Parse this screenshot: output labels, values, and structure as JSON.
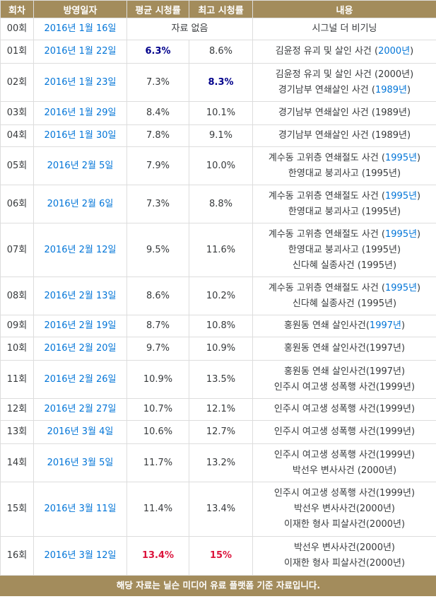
{
  "headers": [
    "회차",
    "방영일자",
    "평균 시청률",
    "최고 시청률",
    "내용"
  ],
  "no_data_label": "자료 없음",
  "footer": "해당 자료는 닐슨 미디어 유료 플랫폼 기준 자료입니다.",
  "episodes": [
    {
      "ep": "00회",
      "date": "2016년 1월 16일",
      "avg": "",
      "max": "",
      "content": [
        {
          "text": "시그널 더 비기닝"
        }
      ]
    },
    {
      "ep": "01회",
      "date": "2016년 1월 22일",
      "avg": "6.3%",
      "max": "8.6%",
      "content": [
        {
          "text": "김윤정 유괴 및 살인 사건 (",
          "link": "2000년",
          "after": ")"
        }
      ]
    },
    {
      "ep": "02회",
      "date": "2016년 1월 23일",
      "avg": "7.3%",
      "max": "8.3%",
      "content": [
        {
          "text": "김윤정 유괴 및 살인 사건 (2000년)"
        },
        {
          "text": "경기남부 연쇄살인 사건 (",
          "link": "1989년",
          "after": ")"
        }
      ]
    },
    {
      "ep": "03회",
      "date": "2016년 1월 29일",
      "avg": "8.4%",
      "max": "10.1%",
      "content": [
        {
          "text": "경기남부 연쇄살인 사건 (1989년)"
        }
      ]
    },
    {
      "ep": "04회",
      "date": "2016년 1월 30일",
      "avg": "7.8%",
      "max": "9.1%",
      "content": [
        {
          "text": "경기남부 연쇄살인 사건 (1989년)"
        }
      ]
    },
    {
      "ep": "05회",
      "date": "2016년 2월 5일",
      "avg": "7.9%",
      "max": "10.0%",
      "content": [
        {
          "text": "계수동 고위층 연쇄절도 사건 (",
          "link": "1995년",
          "after": ")"
        },
        {
          "text": "한영대교 붕괴사고 (1995년)"
        }
      ]
    },
    {
      "ep": "06회",
      "date": "2016년 2월 6일",
      "avg": "7.3%",
      "max": "8.8%",
      "content": [
        {
          "text": "계수동 고위층 연쇄절도 사건 (",
          "link": "1995년",
          "after": ")"
        },
        {
          "text": "한영대교 붕괴사고 (1995년)"
        }
      ]
    },
    {
      "ep": "07회",
      "date": "2016년 2월 12일",
      "avg": "9.5%",
      "max": "11.6%",
      "content": [
        {
          "text": "계수동 고위층 연쇄절도 사건 (",
          "link": "1995년",
          "after": ")"
        },
        {
          "text": "한영대교 붕괴사고 (1995년)"
        },
        {
          "text": "신다혜 실종사건 (1995년)"
        }
      ]
    },
    {
      "ep": "08회",
      "date": "2016년 2월 13일",
      "avg": "8.6%",
      "max": "10.2%",
      "content": [
        {
          "text": "계수동 고위층 연쇄절도 사건 (",
          "link": "1995년",
          "after": ")"
        },
        {
          "text": "신다혜 실종사건 (1995년)"
        }
      ]
    },
    {
      "ep": "09회",
      "date": "2016년 2월 19일",
      "avg": "8.7%",
      "max": "10.8%",
      "content": [
        {
          "text": "홍원동 연쇄 살인사건(",
          "link": "1997년",
          "after": ")"
        }
      ]
    },
    {
      "ep": "10회",
      "date": "2016년 2월 20일",
      "avg": "9.7%",
      "max": "10.9%",
      "content": [
        {
          "text": "홍원동 연쇄 살인사건(1997년)"
        }
      ]
    },
    {
      "ep": "11회",
      "date": "2016년 2월 26일",
      "avg": "10.9%",
      "max": "13.5%",
      "content": [
        {
          "text": "홍원동 연쇄 살인사건(1997년)"
        },
        {
          "text": "인주시 여고생 성폭행 사건(1999년)"
        }
      ]
    },
    {
      "ep": "12회",
      "date": "2016년 2월 27일",
      "avg": "10.7%",
      "max": "12.1%",
      "content": [
        {
          "text": "인주시 여고생 성폭행 사건(1999년)"
        }
      ]
    },
    {
      "ep": "13회",
      "date": "2016년 3월 4일",
      "avg": "10.6%",
      "max": "12.7%",
      "content": [
        {
          "text": "인주시 여고생 성폭행 사건(1999년)"
        }
      ]
    },
    {
      "ep": "14회",
      "date": "2016년 3월 5일",
      "avg": "11.7%",
      "max": "13.2%",
      "content": [
        {
          "text": "인주시 여고생 성폭행 사건(1999년)"
        },
        {
          "text": "박선우 변사사건 (2000년)"
        }
      ]
    },
    {
      "ep": "15회",
      "date": "2016년 3월 11일",
      "avg": "11.4%",
      "max": "13.4%",
      "content": [
        {
          "text": "인주시 여고생 성폭행 사건(1999년)"
        },
        {
          "text": "박선우 변사사건(2000년)"
        },
        {
          "text": "이재한 형사 피살사건(2000년)"
        }
      ]
    },
    {
      "ep": "16회",
      "date": "2016년 3월 12일",
      "avg": "13.4%",
      "max": "15%",
      "content": [
        {
          "text": "박선우 변사사건(2000년)"
        },
        {
          "text": "이재한 형사 피살사건(2000년)"
        }
      ]
    }
  ],
  "highlights": {
    "min_color": "#00008b",
    "max_color": "#dc143c",
    "link_color": "#0275d8",
    "header_color": "#a38c5c"
  }
}
